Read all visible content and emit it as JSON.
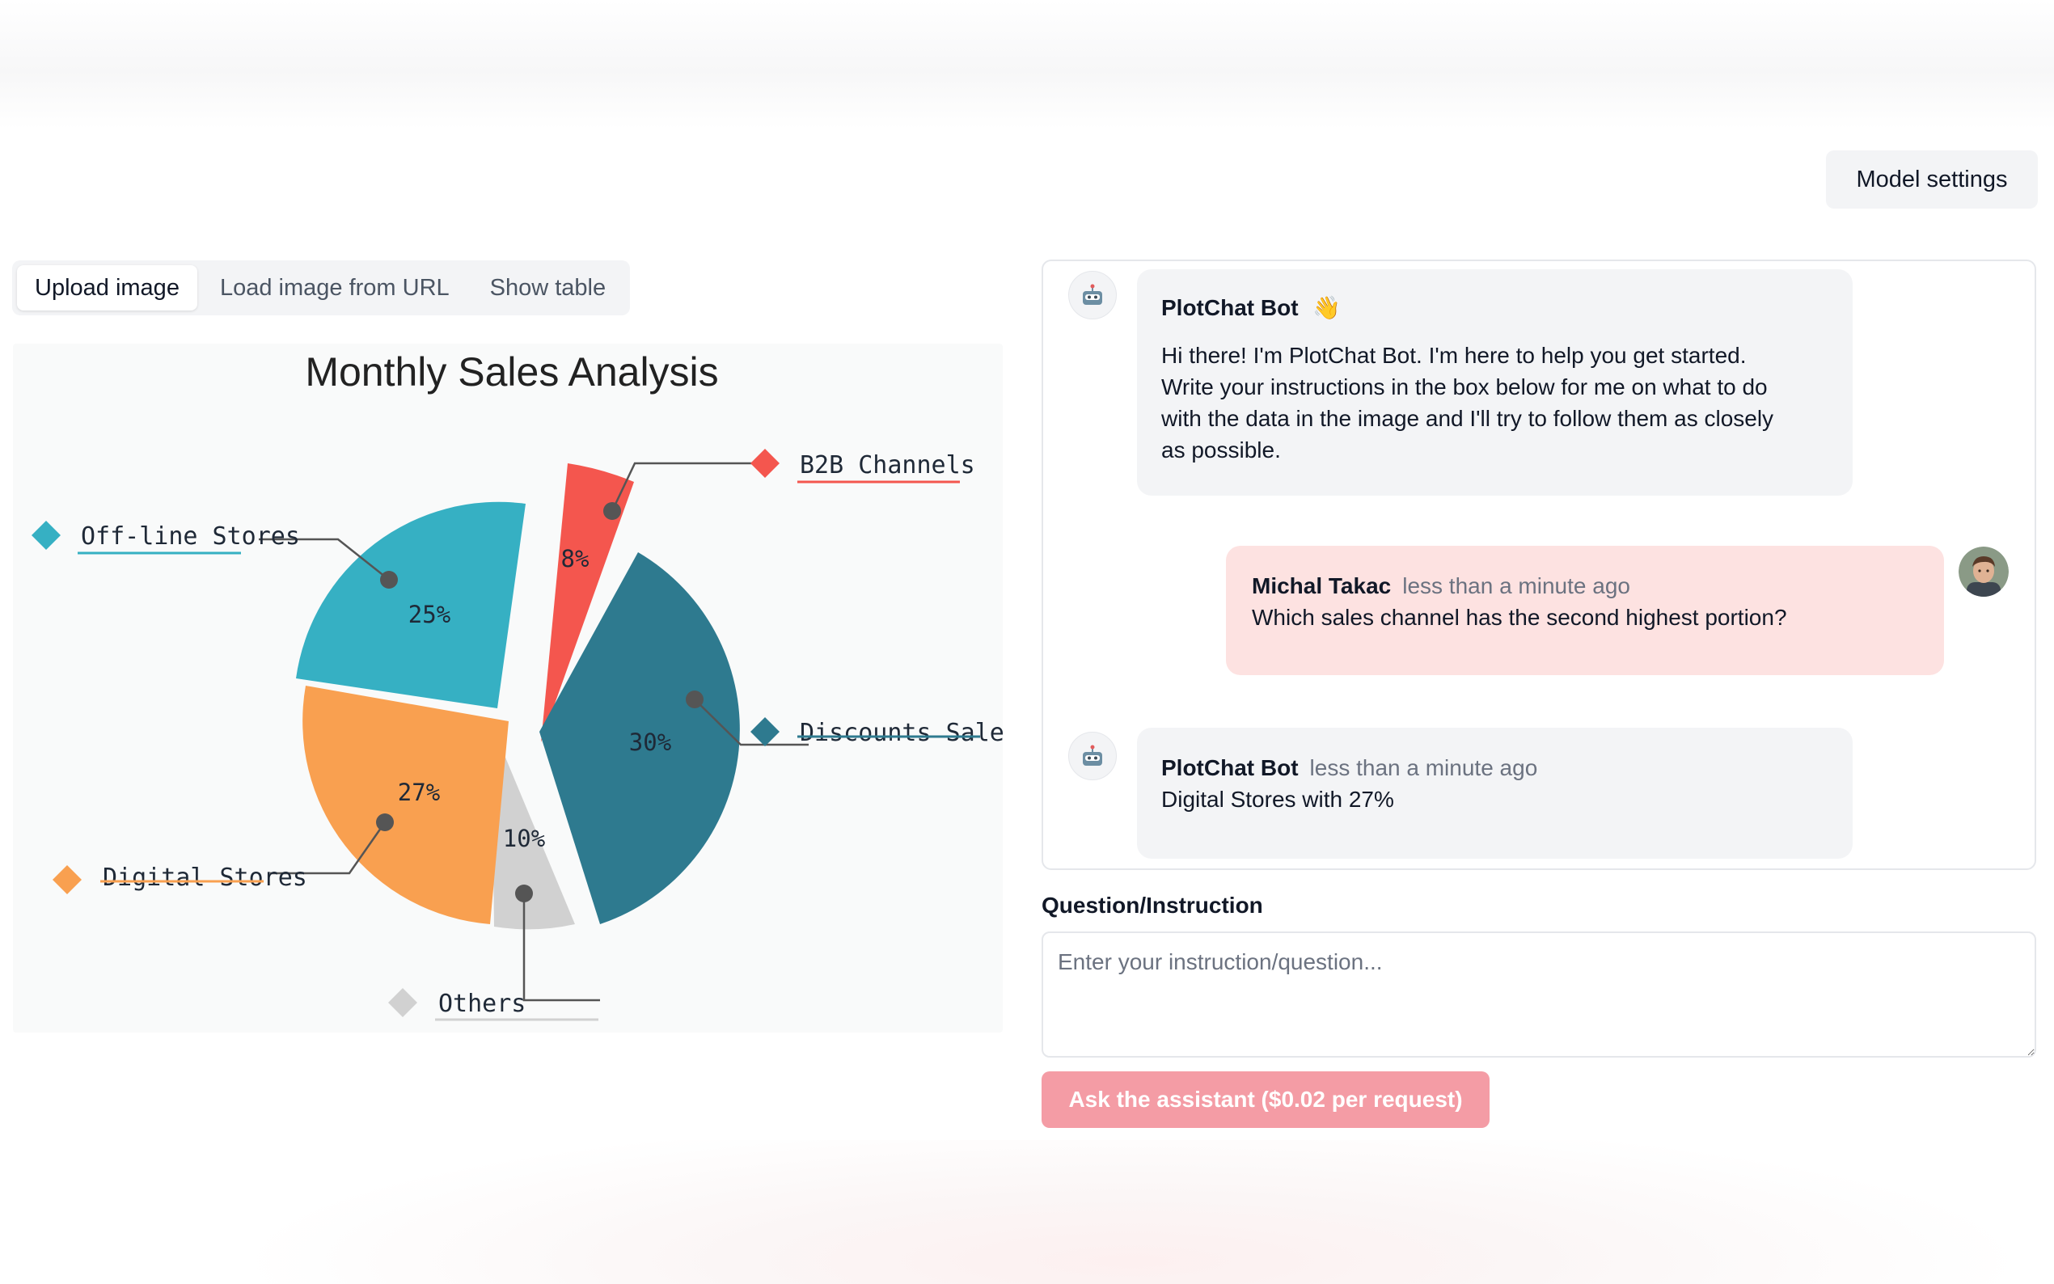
{
  "header": {
    "model_settings_label": "Model settings"
  },
  "tabs": [
    {
      "label": "Upload image",
      "active": true
    },
    {
      "label": "Load image from URL",
      "active": false
    },
    {
      "label": "Show table",
      "active": false
    }
  ],
  "chart_data": {
    "type": "pie",
    "title": "Monthly Sales Analysis",
    "slices": [
      {
        "label": "B2B Channels",
        "value": 8,
        "value_label": "8%",
        "color": "#f4564e"
      },
      {
        "label": "Discounts Sales",
        "value": 30,
        "value_label": "30%",
        "color": "#2e7a8f"
      },
      {
        "label": "Others",
        "value": 10,
        "value_label": "10%",
        "color": "#d1d1d1"
      },
      {
        "label": "Digital Stores",
        "value": 27,
        "value_label": "27%",
        "color": "#f9a050"
      },
      {
        "label": "Off-line Stores",
        "value": 25,
        "value_label": "25%",
        "color": "#36b0c3"
      }
    ],
    "legend": "callouts"
  },
  "chat": {
    "messages": [
      {
        "author": "PlotChat Bot",
        "emoji": "👋",
        "time": "",
        "lines": [
          "Hi there! I'm PlotChat Bot. I'm here to help you get started.",
          "Write your instructions in the box below for me on what to do",
          "with the data in the image and I'll try to follow them as closely",
          "as possible."
        ]
      },
      {
        "author": "Michal Takac",
        "time": "less than a minute ago",
        "text": "Which sales channel has the second highest portion?"
      },
      {
        "author": "PlotChat Bot",
        "time": "less than a minute ago",
        "text": "Digital Stores with 27%"
      }
    ]
  },
  "question": {
    "label": "Question/Instruction",
    "placeholder": "Enter your instruction/question...",
    "value": ""
  },
  "ask_button_label": "Ask the assistant ($0.02 per request)"
}
